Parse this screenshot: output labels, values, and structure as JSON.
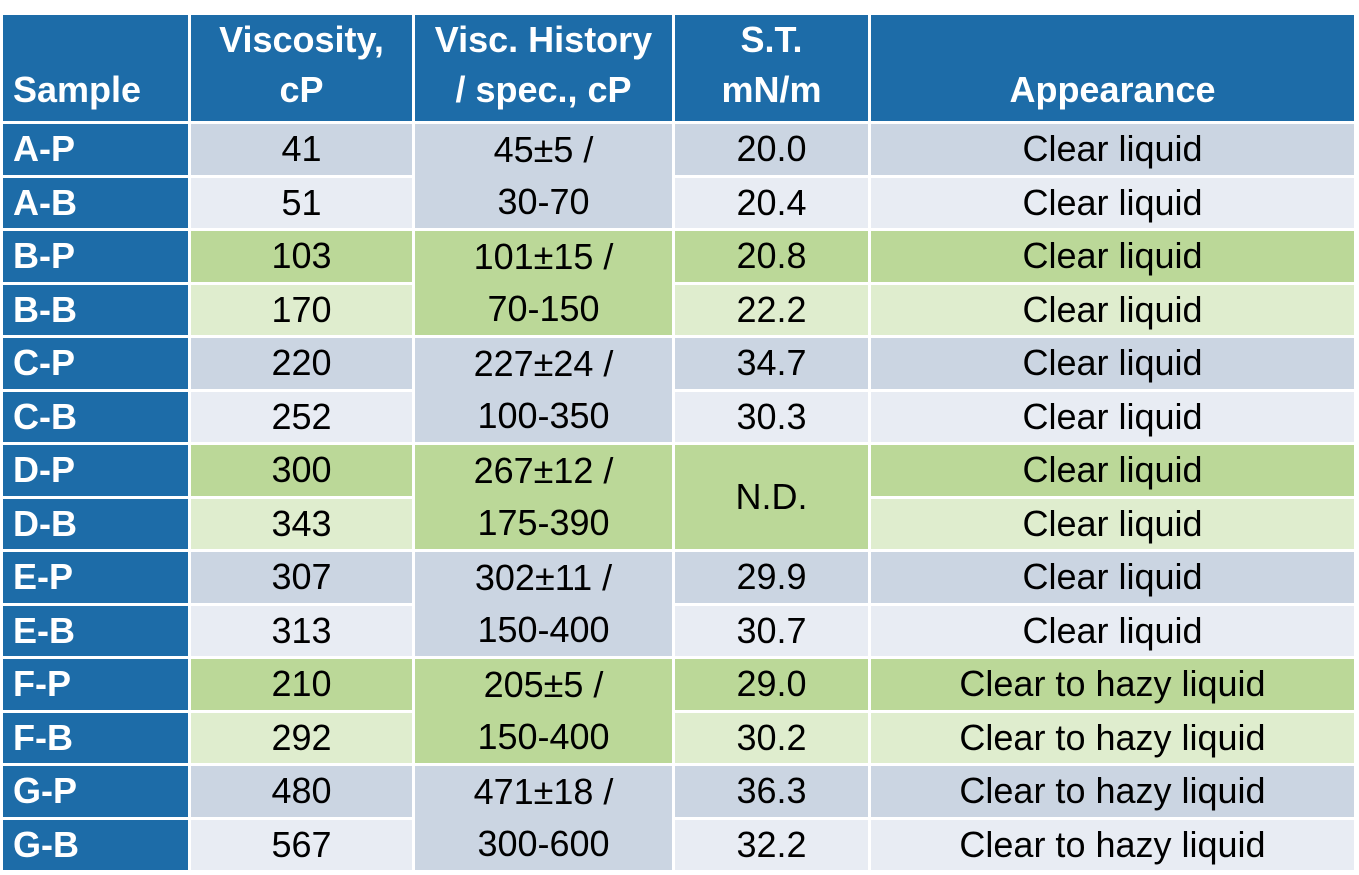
{
  "headers": {
    "sample": "Sample",
    "viscosity_line1": "Viscosity,",
    "viscosity_line2": "cP",
    "history_line1": "Visc. History",
    "history_line2": "/ spec., cP",
    "st_line1": "S.T.",
    "st_line2": "mN/m",
    "appearance": "Appearance"
  },
  "groups": [
    {
      "color": "blue",
      "history_line1": "45±5  /",
      "history_line2": "30-70",
      "rows": [
        {
          "sample": "A-P",
          "viscosity": "41",
          "st": "20.0",
          "appearance": "Clear liquid"
        },
        {
          "sample": "A-B",
          "viscosity": "51",
          "st": "20.4",
          "appearance": "Clear liquid"
        }
      ]
    },
    {
      "color": "green",
      "history_line1": "101±15 /",
      "history_line2": "70-150",
      "rows": [
        {
          "sample": "B-P",
          "viscosity": "103",
          "st": "20.8",
          "appearance": "Clear liquid"
        },
        {
          "sample": "B-B",
          "viscosity": "170",
          "st": "22.2",
          "appearance": "Clear liquid"
        }
      ]
    },
    {
      "color": "blue",
      "history_line1": "227±24 /",
      "history_line2": "100-350",
      "rows": [
        {
          "sample": "C-P",
          "viscosity": "220",
          "st": "34.7",
          "appearance": "Clear liquid"
        },
        {
          "sample": "C-B",
          "viscosity": "252",
          "st": "30.3",
          "appearance": "Clear liquid"
        }
      ]
    },
    {
      "color": "green",
      "history_line1": "267±12 /",
      "history_line2": "175-390",
      "st_merged": "N.D.",
      "rows": [
        {
          "sample": "D-P",
          "viscosity": "300",
          "appearance": "Clear liquid"
        },
        {
          "sample": "D-B",
          "viscosity": "343",
          "appearance": "Clear liquid"
        }
      ]
    },
    {
      "color": "blue",
      "history_line1": "302±11 /",
      "history_line2": "150-400",
      "rows": [
        {
          "sample": "E-P",
          "viscosity": "307",
          "st": "29.9",
          "appearance": "Clear liquid"
        },
        {
          "sample": "E-B",
          "viscosity": "313",
          "st": "30.7",
          "appearance": "Clear liquid"
        }
      ]
    },
    {
      "color": "green",
      "history_line1": "205±5 /",
      "history_line2": "150-400",
      "rows": [
        {
          "sample": "F-P",
          "viscosity": "210",
          "st": "29.0",
          "appearance": "Clear to hazy liquid"
        },
        {
          "sample": "F-B",
          "viscosity": "292",
          "st": "30.2",
          "appearance": "Clear to hazy liquid"
        }
      ]
    },
    {
      "color": "blue",
      "history_line1": "471±18 /",
      "history_line2": "300-600",
      "rows": [
        {
          "sample": "G-P",
          "viscosity": "480",
          "st": "36.3",
          "appearance": "Clear to hazy liquid"
        },
        {
          "sample": "G-B",
          "viscosity": "567",
          "st": "32.2",
          "appearance": "Clear to hazy liquid"
        }
      ]
    }
  ]
}
